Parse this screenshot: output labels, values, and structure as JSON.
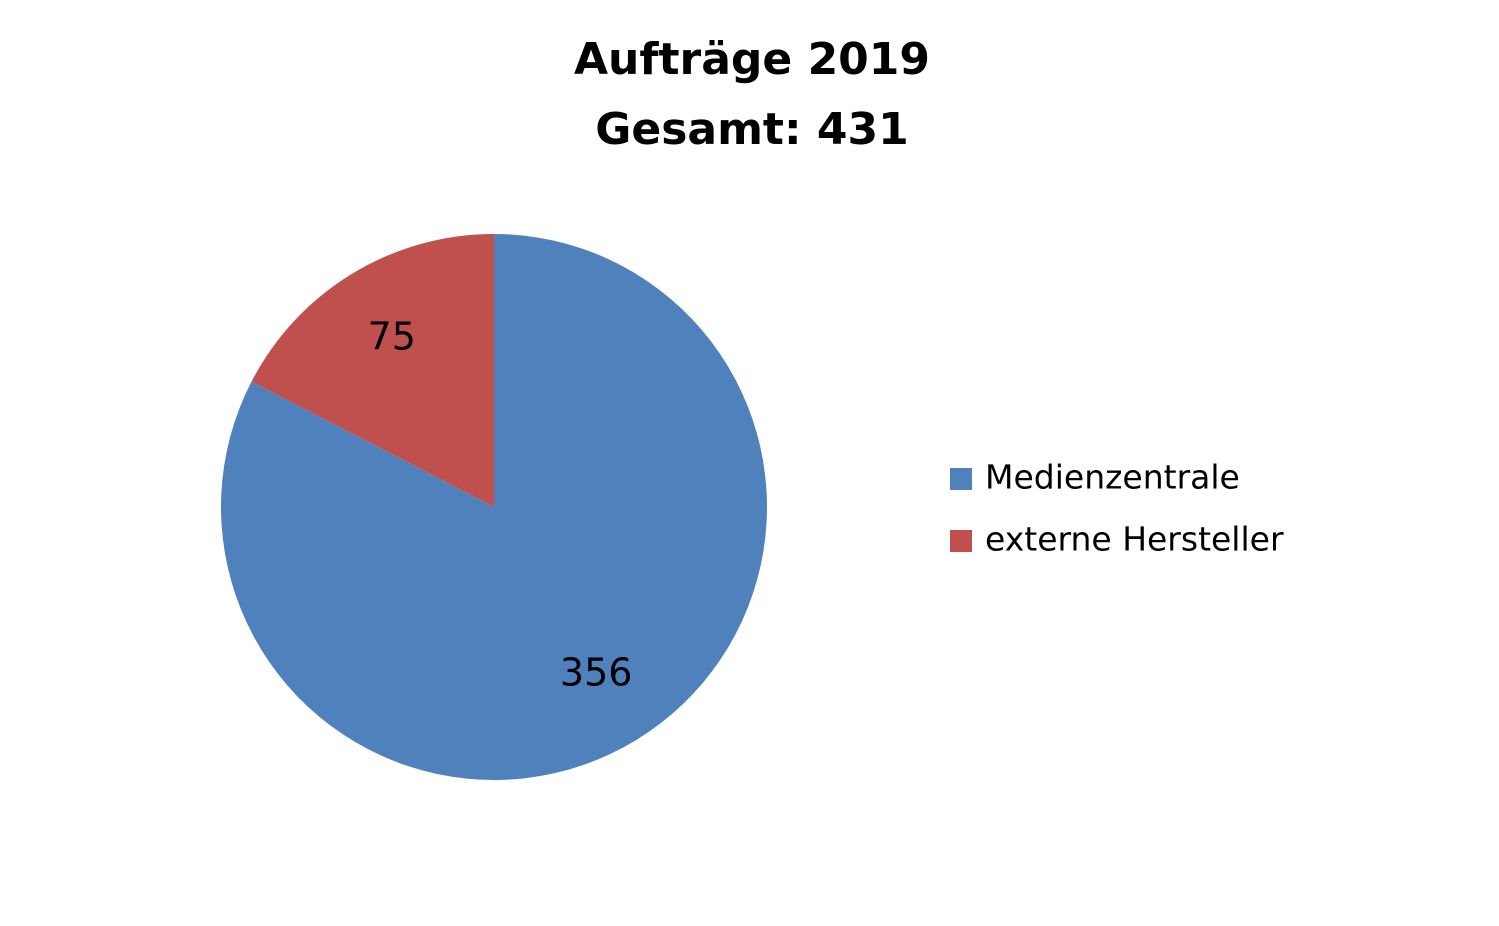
{
  "chart_data": {
    "type": "pie",
    "title": "Aufträge 2019",
    "subtitle": "Gesamt: 431",
    "categories": [
      "Medienzentrale",
      "externe Hersteller"
    ],
    "values": [
      356,
      75
    ],
    "colors": [
      "#4f81bd",
      "#c0504d"
    ],
    "legend": "right"
  }
}
